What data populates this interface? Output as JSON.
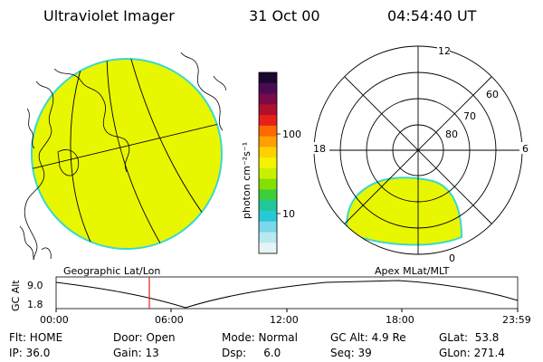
{
  "header": {
    "title": "Ultraviolet Imager",
    "date": "31 Oct 00",
    "time": "04:54:40 UT"
  },
  "colorbar": {
    "unit_label": "photon cm⁻²s⁻¹",
    "ticks": [
      "100",
      "10"
    ],
    "colors": [
      "#1a0830",
      "#4b0b52",
      "#7a0a4a",
      "#b0102a",
      "#e8201a",
      "#ff6a00",
      "#ff9f00",
      "#ffd100",
      "#f4f400",
      "#c8f000",
      "#84e000",
      "#3ccf3c",
      "#20c898",
      "#28c8d8",
      "#7ad8e8",
      "#b8e8f0",
      "#e6f4f6"
    ]
  },
  "geo_map": {
    "label": "Geographic Lat/Lon",
    "fill_color": "#e8f600",
    "edge_color": "#3ad8d0"
  },
  "polar_plot": {
    "label": "Apex MLat/MLT",
    "mlt_labels": {
      "top": "12",
      "left": "18",
      "right": "6",
      "bottom": "0"
    },
    "lat_labels": [
      "60",
      "70",
      "80"
    ]
  },
  "altitude_plot": {
    "ylabel": "GC Alt",
    "yticks": [
      "9.0",
      "1.8"
    ],
    "xticks": [
      "00:00",
      "06:00",
      "12:00",
      "18:00",
      "23:59"
    ],
    "marker_color": "#e02020"
  },
  "info": {
    "row1": [
      "Flt: HOME",
      "Door: Open",
      "Mode: Normal",
      "GC Alt: 4.9 Re",
      "GLat:  53.8"
    ],
    "row2": [
      "IP: 36.0",
      "Gain: 13",
      "Dsp:     6.0",
      "Seq: 39",
      "GLon: 271.4"
    ]
  }
}
